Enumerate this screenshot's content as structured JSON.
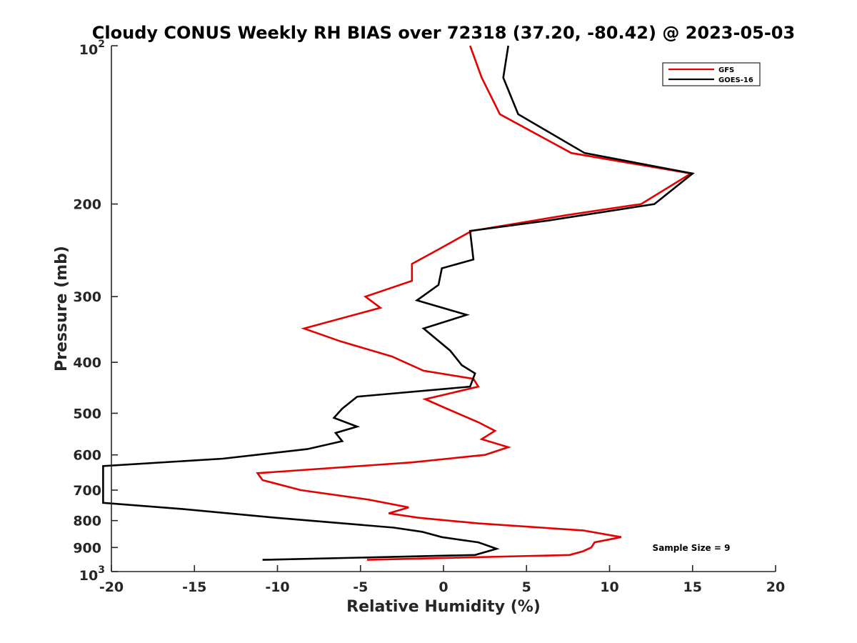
{
  "chart_data": {
    "type": "line",
    "title": "Cloudy CONUS Weekly RH BIAS over 72318 (37.20, -80.42) @ 2023-05-03",
    "xlabel": "Relative Humidity (%)",
    "ylabel": "Pressure (mb)",
    "xlim": [
      -20,
      20
    ],
    "ylim": [
      100,
      1000
    ],
    "yscale": "log",
    "y_reversed": true,
    "xticks": [
      -20,
      -15,
      -10,
      -5,
      0,
      5,
      10,
      15,
      20
    ],
    "yticks": [
      {
        "value": 100,
        "base": "10",
        "exp": "2"
      },
      {
        "value": 200,
        "label": "200"
      },
      {
        "value": 300,
        "label": "300"
      },
      {
        "value": 400,
        "label": "400"
      },
      {
        "value": 500,
        "label": "500"
      },
      {
        "value": 600,
        "label": "600"
      },
      {
        "value": 700,
        "label": "700"
      },
      {
        "value": 800,
        "label": "800"
      },
      {
        "value": 900,
        "label": "900"
      },
      {
        "value": 1000,
        "base": "10",
        "exp": "3"
      }
    ],
    "legend_position": "top-right",
    "grid": false,
    "series": [
      {
        "name": "GFS",
        "color": "#e60000",
        "points": [
          [
            1.6,
            100
          ],
          [
            2.3,
            115
          ],
          [
            3.4,
            135
          ],
          [
            7.7,
            160
          ],
          [
            14.9,
            175
          ],
          [
            11.9,
            200
          ],
          [
            7.4,
            210
          ],
          [
            1.7,
            225
          ],
          [
            -0.4,
            245
          ],
          [
            -1.9,
            260
          ],
          [
            -1.9,
            280
          ],
          [
            -4.7,
            300
          ],
          [
            -3.8,
            315
          ],
          [
            -8.4,
            345
          ],
          [
            -6.2,
            365
          ],
          [
            -3.1,
            390
          ],
          [
            -1.2,
            415
          ],
          [
            1.8,
            430
          ],
          [
            2.1,
            445
          ],
          [
            -1.1,
            470
          ],
          [
            0.2,
            490
          ],
          [
            2.1,
            520
          ],
          [
            3.1,
            540
          ],
          [
            2.3,
            560
          ],
          [
            3.9,
            580
          ],
          [
            2.5,
            600
          ],
          [
            -1.9,
            620
          ],
          [
            -11.2,
            650
          ],
          [
            -10.9,
            670
          ],
          [
            -8.6,
            700
          ],
          [
            -4.5,
            730
          ],
          [
            -2.1,
            755
          ],
          [
            -3.3,
            775
          ],
          [
            -1.5,
            790
          ],
          [
            2.1,
            810
          ],
          [
            8.4,
            835
          ],
          [
            10.7,
            860
          ],
          [
            9.1,
            880
          ],
          [
            8.9,
            900
          ],
          [
            8.4,
            915
          ],
          [
            7.6,
            930
          ],
          [
            -4.6,
            950
          ]
        ]
      },
      {
        "name": "GOES-16",
        "color": "#000000",
        "points": [
          [
            3.9,
            100
          ],
          [
            3.6,
            115
          ],
          [
            4.5,
            135
          ],
          [
            8.5,
            160
          ],
          [
            15.0,
            175
          ],
          [
            12.7,
            200
          ],
          [
            6.3,
            215
          ],
          [
            1.6,
            225
          ],
          [
            1.8,
            255
          ],
          [
            -0.1,
            265
          ],
          [
            -0.3,
            285
          ],
          [
            -1.6,
            305
          ],
          [
            1.4,
            325
          ],
          [
            -1.2,
            345
          ],
          [
            0.4,
            380
          ],
          [
            1.1,
            405
          ],
          [
            1.9,
            420
          ],
          [
            1.6,
            445
          ],
          [
            -5.2,
            465
          ],
          [
            -6.1,
            490
          ],
          [
            -6.6,
            510
          ],
          [
            -5.2,
            530
          ],
          [
            -6.5,
            545
          ],
          [
            -6.1,
            565
          ],
          [
            -8.2,
            585
          ],
          [
            -13.3,
            610
          ],
          [
            -20.5,
            630
          ],
          [
            -20.5,
            740
          ],
          [
            -15.8,
            760
          ],
          [
            -10.1,
            790
          ],
          [
            -3.0,
            825
          ],
          [
            -1.3,
            840
          ],
          [
            -0.1,
            860
          ],
          [
            2.1,
            880
          ],
          [
            3.2,
            905
          ],
          [
            1.9,
            930
          ],
          [
            -10.9,
            950
          ]
        ]
      }
    ],
    "annotation": "Sample Size = 9"
  }
}
